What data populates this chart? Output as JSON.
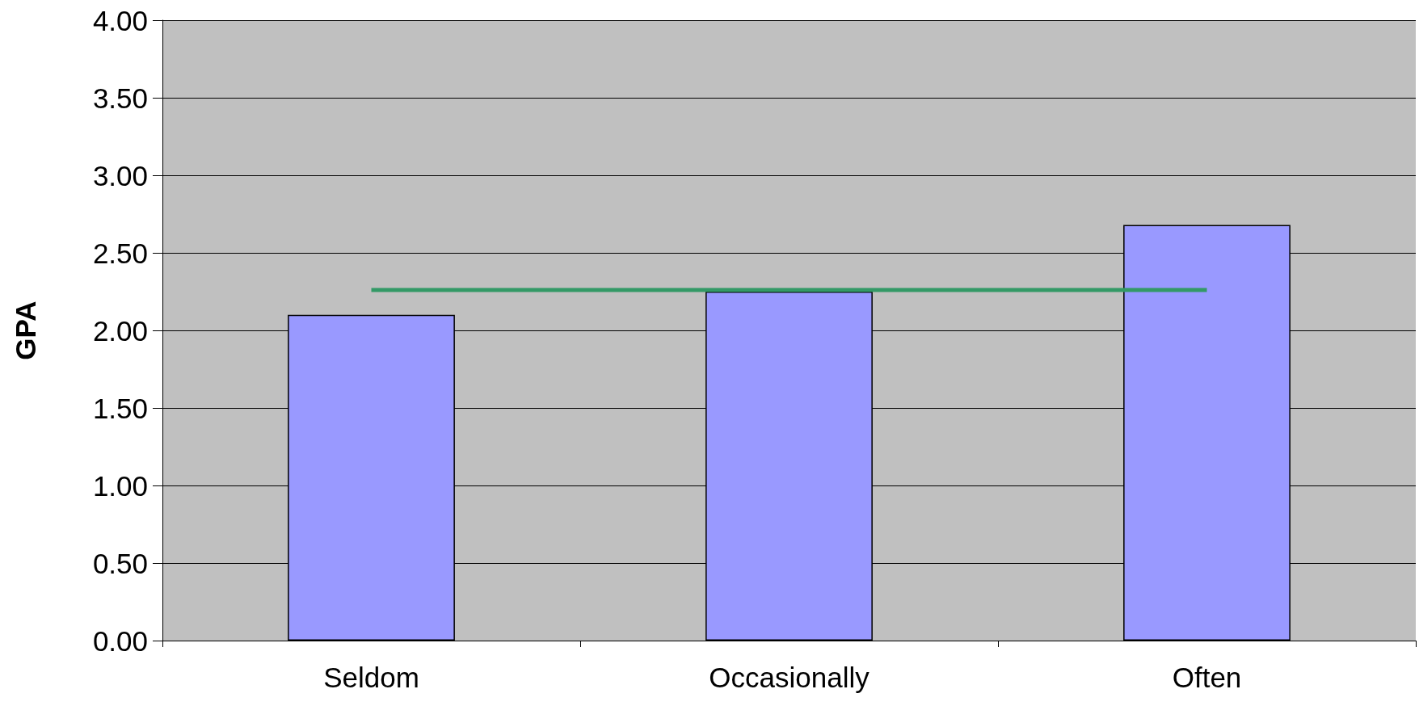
{
  "chart_data": {
    "type": "bar",
    "ylabel": "GPA",
    "categories": [
      "Seldom",
      "Occasionally",
      "Often"
    ],
    "series": [
      {
        "color": "#9999ff",
        "values": [
          2.1,
          2.25,
          2.68
        ]
      },
      {
        "type": "line",
        "color": "#339966",
        "values": [
          2.26,
          2.26,
          2.26
        ],
        "marker": "none"
      }
    ],
    "ylim": [
      0,
      4
    ],
    "yticks": [
      {
        "value": 0,
        "label": "0.00"
      },
      {
        "value": 0.5,
        "label": "0.50"
      },
      {
        "value": 1,
        "label": "1.00"
      },
      {
        "value": 1.5,
        "label": "1.50"
      },
      {
        "value": 2,
        "label": "2.00"
      },
      {
        "value": 2.5,
        "label": "2.50"
      },
      {
        "value": 3,
        "label": "3.00"
      },
      {
        "value": 3.5,
        "label": "3.50"
      },
      {
        "value": 4,
        "label": "4.00"
      }
    ],
    "grid": "y"
  }
}
